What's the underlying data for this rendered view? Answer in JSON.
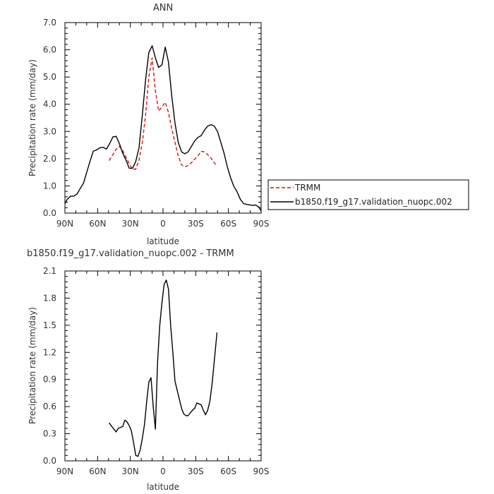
{
  "chart_data": [
    {
      "type": "line",
      "title": "ANN",
      "xlabel": "latitude",
      "ylabel": "Precipitation rate (mm/day)",
      "xlim": [
        90,
        -90
      ],
      "ylim": [
        0.0,
        7.0
      ],
      "x_ticks": [
        90,
        60,
        30,
        0,
        -30,
        -60,
        -90
      ],
      "x_tick_labels": [
        "90N",
        "60N",
        "30N",
        "0",
        "30S",
        "60S",
        "90S"
      ],
      "y_ticks": [
        0,
        1,
        2,
        3,
        4,
        5,
        6,
        7
      ],
      "y_tick_labels": [
        "0.0",
        "1.0",
        "2.0",
        "3.0",
        "4.0",
        "5.0",
        "6.0",
        "7.0"
      ],
      "legend": "outside-right",
      "series": [
        {
          "name": "TRMM",
          "color": "#e01010",
          "dash": true,
          "x": [
            49.5,
            46,
            43,
            40,
            37,
            34,
            31,
            28,
            25,
            22,
            19,
            16,
            13,
            10,
            7,
            4,
            1,
            -2,
            -5,
            -8,
            -11,
            -14,
            -17,
            -20,
            -23,
            -26,
            -29,
            -32,
            -35,
            -38,
            -41,
            -44,
            -47,
            -49.5
          ],
          "values": [
            1.93,
            2.15,
            2.35,
            2.45,
            2.3,
            2.05,
            1.82,
            1.6,
            1.62,
            1.95,
            2.6,
            3.6,
            5.0,
            5.7,
            4.5,
            3.75,
            3.9,
            4.07,
            3.7,
            3.1,
            2.6,
            2.1,
            1.77,
            1.7,
            1.75,
            1.85,
            1.98,
            2.1,
            2.27,
            2.25,
            2.15,
            2.02,
            1.85,
            1.72
          ]
        },
        {
          "name": "b1850.f19_g17.validation_nuopc.002",
          "color": "#000000",
          "dash": false,
          "x": [
            90,
            88,
            85,
            82,
            79,
            76,
            73,
            70,
            67,
            64,
            61,
            58,
            55,
            52,
            49,
            46,
            43,
            40,
            37,
            34,
            31,
            28,
            25,
            22,
            19,
            16,
            13,
            10,
            7,
            4,
            1,
            -2,
            -5,
            -8,
            -11,
            -14,
            -17,
            -20,
            -23,
            -26,
            -29,
            -32,
            -35,
            -38,
            -41,
            -44,
            -47,
            -50,
            -53,
            -56,
            -59,
            -62,
            -65,
            -68,
            -71,
            -74,
            -77,
            -80,
            -83,
            -85,
            -88,
            -90
          ],
          "values": [
            0.35,
            0.5,
            0.62,
            0.62,
            0.7,
            0.9,
            1.1,
            1.5,
            1.9,
            2.28,
            2.32,
            2.4,
            2.42,
            2.35,
            2.55,
            2.8,
            2.82,
            2.55,
            2.2,
            1.95,
            1.65,
            1.65,
            1.9,
            2.4,
            3.6,
            4.9,
            5.9,
            6.15,
            5.7,
            5.35,
            5.45,
            6.1,
            5.55,
            4.3,
            3.3,
            2.6,
            2.25,
            2.18,
            2.25,
            2.45,
            2.65,
            2.78,
            2.85,
            3.05,
            3.2,
            3.25,
            3.2,
            3.0,
            2.6,
            2.2,
            1.7,
            1.3,
            0.98,
            0.78,
            0.5,
            0.35,
            0.32,
            0.3,
            0.28,
            0.3,
            0.22,
            0.08
          ]
        }
      ]
    },
    {
      "type": "line",
      "title": "b1850.f19_g17.validation_nuopc.002 - TRMM",
      "xlabel": "latitude",
      "ylabel": "Precipitation rate (mm/day)",
      "xlim": [
        90,
        -90
      ],
      "ylim": [
        0.0,
        2.1
      ],
      "x_ticks": [
        90,
        60,
        30,
        0,
        -30,
        -60,
        -90
      ],
      "x_tick_labels": [
        "90N",
        "60N",
        "30N",
        "0",
        "30S",
        "60S",
        "90S"
      ],
      "y_ticks": [
        0,
        0.3,
        0.6,
        0.9,
        1.2,
        1.5,
        1.8,
        2.1
      ],
      "y_tick_labels": [
        "0.0",
        "0.3",
        "0.6",
        "0.9",
        "1.2",
        "1.5",
        "1.8",
        "2.1"
      ],
      "series": [
        {
          "name": "",
          "color": "#000000",
          "dash": false,
          "x": [
            49.5,
            47,
            45,
            43,
            41,
            39,
            37,
            35,
            33,
            31,
            29,
            27,
            25,
            23,
            21,
            19,
            17,
            15,
            13,
            11,
            9,
            7,
            5,
            3,
            1,
            -1,
            -3,
            -5,
            -7,
            -9,
            -11,
            -13,
            -15,
            -17,
            -19,
            -21,
            -23,
            -25,
            -27,
            -29,
            -31,
            -33,
            -35,
            -37,
            -39,
            -41,
            -43,
            -45,
            -47,
            -49.5
          ],
          "values": [
            0.42,
            0.38,
            0.35,
            0.32,
            0.36,
            0.37,
            0.38,
            0.45,
            0.43,
            0.39,
            0.33,
            0.2,
            0.06,
            0.05,
            0.12,
            0.25,
            0.4,
            0.65,
            0.87,
            0.92,
            0.6,
            0.35,
            1.1,
            1.5,
            1.75,
            1.95,
            2.0,
            1.9,
            1.5,
            1.2,
            0.88,
            0.78,
            0.68,
            0.58,
            0.52,
            0.5,
            0.5,
            0.53,
            0.56,
            0.58,
            0.64,
            0.63,
            0.62,
            0.56,
            0.51,
            0.56,
            0.66,
            0.85,
            1.1,
            1.42
          ]
        }
      ]
    }
  ]
}
